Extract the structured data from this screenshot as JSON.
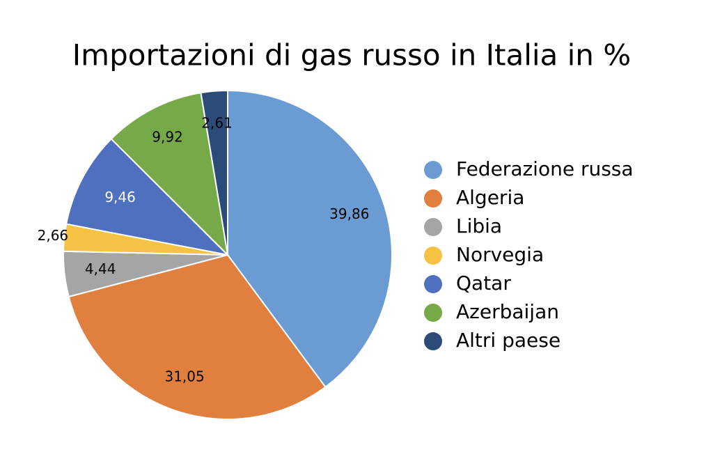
{
  "chart_data": {
    "type": "pie",
    "title": "Importazioni di gas russo in Italia in %",
    "categories": [
      "Federazione russa",
      "Algeria",
      "Libia",
      "Norvegia",
      "Qatar",
      "Azerbaijan",
      "Altri paese"
    ],
    "values": [
      39.86,
      31.05,
      4.44,
      2.66,
      9.46,
      9.92,
      2.61
    ],
    "value_labels": [
      "39,86",
      "31,05",
      "4,44",
      "2,66",
      "9,46",
      "9,92",
      "2,61"
    ],
    "colors": [
      "#6a9bd2",
      "#e17f3f",
      "#a5a5a5",
      "#f6c243",
      "#4f6fbf",
      "#76aa48",
      "#2d4b79"
    ],
    "legend": "right"
  }
}
